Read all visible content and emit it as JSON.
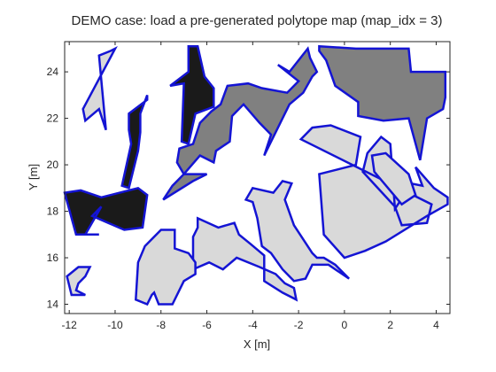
{
  "chart_data": {
    "type": "polygon-map",
    "title": "DEMO case: load a pre-generated polytope map (map_idx = 3)",
    "xlabel": "X [m]",
    "ylabel": "Y [m]",
    "xlim": [
      -12.2,
      4.6
    ],
    "ylim": [
      13.6,
      25.3
    ],
    "xticks": [
      -12,
      -10,
      -8,
      -6,
      -4,
      -2,
      0,
      2,
      4
    ],
    "yticks": [
      14,
      16,
      18,
      20,
      22,
      24
    ],
    "xtick_labels": [
      "-12",
      "-10",
      "-8",
      "-6",
      "-4",
      "-2",
      "0",
      "2",
      "4"
    ],
    "ytick_labels": [
      "14",
      "16",
      "18",
      "20",
      "22",
      "24"
    ],
    "grid": false,
    "edge_color": "#1414d4",
    "shade_colors": {
      "light": "#d9d9d9",
      "medium": "#808080",
      "dark": "#1a1a1a"
    },
    "polytopes": [
      {
        "shade": "light",
        "points": [
          [
            -11.3,
            21.9
          ],
          [
            -10.7,
            22.4
          ],
          [
            -10.4,
            21.5
          ],
          [
            -10.7,
            24.7
          ],
          [
            -10.2,
            24.9
          ],
          [
            -10.0,
            25.0
          ],
          [
            -11.4,
            22.4
          ]
        ]
      },
      {
        "shade": "dark",
        "points": [
          [
            -6.8,
            25.1
          ],
          [
            -6.4,
            25.1
          ],
          [
            -6.1,
            23.8
          ],
          [
            -5.7,
            23.3
          ],
          [
            -5.7,
            22.5
          ],
          [
            -6.5,
            22.2
          ],
          [
            -6.8,
            20.9
          ],
          [
            -7.1,
            21.0
          ],
          [
            -7.0,
            23.5
          ],
          [
            -7.6,
            23.4
          ],
          [
            -6.8,
            24.0
          ]
        ]
      },
      {
        "shade": "dark",
        "points": [
          [
            -9.4,
            22.2
          ],
          [
            -8.6,
            22.8
          ],
          [
            -8.6,
            23.0
          ],
          [
            -8.9,
            22.2
          ],
          [
            -8.9,
            21.4
          ],
          [
            -9.0,
            20.6
          ],
          [
            -9.4,
            19.0
          ],
          [
            -9.7,
            19.1
          ],
          [
            -9.3,
            20.9
          ],
          [
            -9.4,
            21.5
          ]
        ]
      },
      {
        "shade": "dark",
        "points": [
          [
            -12.2,
            18.8
          ],
          [
            -11.5,
            18.9
          ],
          [
            -10.6,
            18.6
          ],
          [
            -9.8,
            18.8
          ],
          [
            -9.0,
            19.0
          ],
          [
            -8.6,
            18.7
          ],
          [
            -8.8,
            17.3
          ],
          [
            -9.6,
            17.2
          ],
          [
            -10.3,
            17.5
          ],
          [
            -11.0,
            17.8
          ],
          [
            -10.6,
            18.2
          ],
          [
            -11.3,
            17.0
          ],
          [
            -10.7,
            17.0
          ],
          [
            -11.7,
            17.0
          ]
        ]
      },
      {
        "shade": "medium",
        "points": [
          [
            -7.0,
            19.6
          ],
          [
            -6.3,
            20.4
          ],
          [
            -5.7,
            20.1
          ],
          [
            -5.6,
            20.6
          ],
          [
            -5.0,
            21.0
          ],
          [
            -4.9,
            22.1
          ],
          [
            -4.4,
            22.6
          ],
          [
            -3.7,
            21.8
          ],
          [
            -3.2,
            21.3
          ],
          [
            -3.5,
            20.4
          ],
          [
            -2.4,
            22.6
          ],
          [
            -1.8,
            23.1
          ],
          [
            -1.4,
            23.8
          ],
          [
            -1.2,
            24.0
          ],
          [
            -1.5,
            24.6
          ],
          [
            -1.6,
            25.0
          ],
          [
            -2.4,
            24.0
          ],
          [
            -2.9,
            24.3
          ],
          [
            -2.0,
            23.6
          ],
          [
            -2.5,
            23.1
          ],
          [
            -3.6,
            23.3
          ],
          [
            -4.2,
            23.5
          ],
          [
            -5.1,
            23.4
          ],
          [
            -5.4,
            22.6
          ],
          [
            -5.8,
            22.3
          ],
          [
            -6.3,
            21.8
          ],
          [
            -6.6,
            20.9
          ],
          [
            -7.2,
            20.7
          ],
          [
            -7.3,
            20.1
          ],
          [
            -7.0,
            19.6
          ],
          [
            -7.5,
            19.1
          ],
          [
            -7.9,
            18.5
          ],
          [
            -6.6,
            19.3
          ],
          [
            -6.0,
            19.6
          ]
        ]
      },
      {
        "shade": "medium",
        "points": [
          [
            -1.1,
            25.1
          ],
          [
            0.5,
            25.0
          ],
          [
            2.8,
            25.0
          ],
          [
            2.9,
            24.0
          ],
          [
            4.4,
            24.0
          ],
          [
            4.4,
            22.9
          ],
          [
            4.3,
            22.4
          ],
          [
            3.6,
            22.0
          ],
          [
            3.3,
            20.2
          ],
          [
            2.8,
            22.0
          ],
          [
            1.7,
            21.9
          ],
          [
            0.6,
            22.1
          ],
          [
            0.6,
            22.7
          ],
          [
            -0.4,
            23.4
          ],
          [
            -0.8,
            24.5
          ],
          [
            -1.1,
            24.9
          ]
        ]
      },
      {
        "shade": "light",
        "points": [
          [
            -1.9,
            21.1
          ],
          [
            -1.4,
            21.6
          ],
          [
            -0.6,
            21.7
          ],
          [
            0.7,
            21.2
          ],
          [
            0.5,
            20.0
          ],
          [
            -1.1,
            19.6
          ],
          [
            -0.9,
            17.0
          ],
          [
            0.0,
            16.0
          ],
          [
            0.9,
            16.3
          ],
          [
            1.8,
            16.7
          ],
          [
            3.6,
            17.8
          ],
          [
            4.5,
            18.3
          ],
          [
            4.5,
            18.6
          ],
          [
            3.9,
            19.0
          ],
          [
            3.1,
            19.9
          ],
          [
            3.4,
            19.1
          ],
          [
            2.9,
            19.2
          ],
          [
            2.6,
            18.7
          ],
          [
            2.2,
            18.1
          ],
          [
            2.0,
            20.9
          ],
          [
            1.6,
            21.2
          ],
          [
            1.0,
            20.5
          ],
          [
            0.8,
            19.7
          ],
          [
            2.2,
            18.2
          ],
          [
            2.5,
            17.4
          ],
          [
            3.6,
            17.5
          ],
          [
            3.8,
            18.3
          ]
        ]
      },
      {
        "shade": "light",
        "points": [
          [
            -4.0,
            19.0
          ],
          [
            -3.1,
            18.8
          ],
          [
            -2.7,
            19.3
          ],
          [
            -2.3,
            19.2
          ],
          [
            -2.6,
            18.5
          ],
          [
            -2.2,
            17.4
          ],
          [
            -1.4,
            16.2
          ],
          [
            -1.2,
            16.0
          ],
          [
            -0.9,
            16.0
          ],
          [
            -0.4,
            15.7
          ],
          [
            0.2,
            15.1
          ],
          [
            -0.7,
            15.7
          ],
          [
            -1.4,
            15.7
          ],
          [
            -1.7,
            15.1
          ],
          [
            -2.2,
            15.0
          ],
          [
            -2.7,
            15.5
          ],
          [
            -3.2,
            16.2
          ],
          [
            -3.6,
            16.5
          ],
          [
            -3.8,
            17.7
          ],
          [
            -4.0,
            18.4
          ],
          [
            -4.3,
            18.5
          ]
        ]
      },
      {
        "shade": "light",
        "points": [
          [
            -6.4,
            17.7
          ],
          [
            -5.5,
            17.3
          ],
          [
            -4.8,
            17.5
          ],
          [
            -4.6,
            17.0
          ],
          [
            -4.1,
            16.6
          ],
          [
            -3.5,
            16.1
          ],
          [
            -3.5,
            15.0
          ],
          [
            -2.7,
            14.5
          ],
          [
            -2.1,
            14.2
          ],
          [
            -2.2,
            14.7
          ],
          [
            -2.6,
            14.9
          ],
          [
            -3.0,
            15.3
          ],
          [
            -3.7,
            15.6
          ],
          [
            -4.7,
            16.0
          ],
          [
            -5.3,
            15.5
          ],
          [
            -5.9,
            15.8
          ],
          [
            -6.6,
            15.5
          ],
          [
            -6.6,
            16.9
          ],
          [
            -6.4,
            17.3
          ]
        ]
      },
      {
        "shade": "light",
        "points": [
          [
            -8.0,
            17.2
          ],
          [
            -7.4,
            17.2
          ],
          [
            -7.4,
            16.4
          ],
          [
            -6.8,
            16.2
          ],
          [
            -6.5,
            15.8
          ],
          [
            -6.5,
            15.3
          ],
          [
            -7.0,
            15.0
          ],
          [
            -7.5,
            14.0
          ],
          [
            -8.1,
            14.0
          ],
          [
            -8.3,
            14.5
          ],
          [
            -8.4,
            14.4
          ],
          [
            -8.6,
            14.0
          ],
          [
            -9.1,
            14.2
          ],
          [
            -9.0,
            15.8
          ],
          [
            -8.7,
            16.5
          ],
          [
            -8.3,
            16.9
          ]
        ]
      },
      {
        "shade": "light",
        "points": [
          [
            -12.1,
            15.2
          ],
          [
            -11.6,
            15.6
          ],
          [
            -11.1,
            15.6
          ],
          [
            -11.3,
            15.2
          ],
          [
            -11.6,
            14.9
          ],
          [
            -11.7,
            14.6
          ],
          [
            -11.3,
            14.4
          ],
          [
            -11.9,
            14.4
          ]
        ]
      },
      {
        "shade": "light",
        "points": [
          [
            1.2,
            20.4
          ],
          [
            1.8,
            20.5
          ],
          [
            2.8,
            19.6
          ],
          [
            3.1,
            18.7
          ],
          [
            2.5,
            18.3
          ],
          [
            1.9,
            19.0
          ],
          [
            1.3,
            19.7
          ]
        ]
      }
    ]
  }
}
